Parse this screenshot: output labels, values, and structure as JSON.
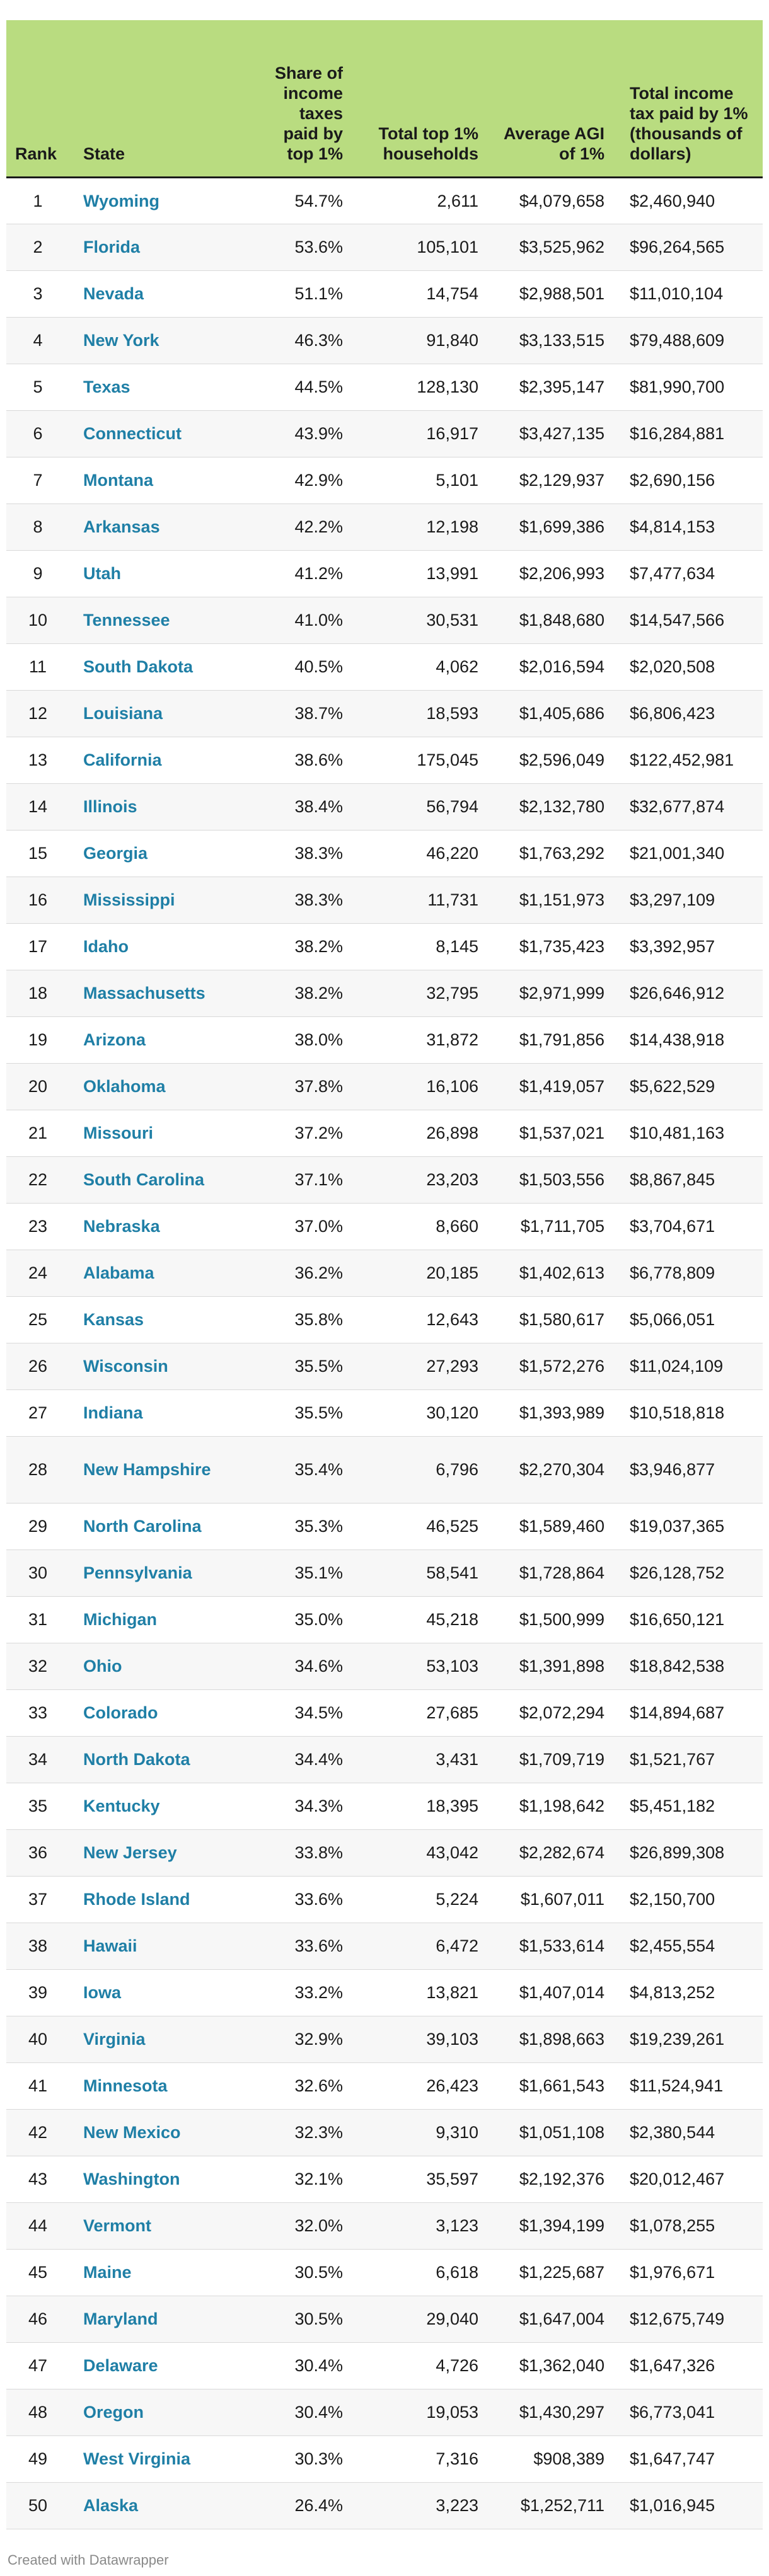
{
  "chart_data": {
    "type": "table",
    "title": "",
    "columns": [
      "Rank",
      "State",
      "Share of income taxes paid by top 1%",
      "Total top 1% households",
      "Average AGI of 1%",
      "Total income tax paid by 1% (thousands of dollars)"
    ],
    "rows": [
      {
        "rank": "1",
        "state": "Wyoming",
        "share": "54.7%",
        "households": "2,611",
        "agi": "$4,079,658",
        "total_tax": "$2,460,940"
      },
      {
        "rank": "2",
        "state": "Florida",
        "share": "53.6%",
        "households": "105,101",
        "agi": "$3,525,962",
        "total_tax": "$96,264,565"
      },
      {
        "rank": "3",
        "state": "Nevada",
        "share": "51.1%",
        "households": "14,754",
        "agi": "$2,988,501",
        "total_tax": "$11,010,104"
      },
      {
        "rank": "4",
        "state": "New York",
        "share": "46.3%",
        "households": "91,840",
        "agi": "$3,133,515",
        "total_tax": "$79,488,609"
      },
      {
        "rank": "5",
        "state": "Texas",
        "share": "44.5%",
        "households": "128,130",
        "agi": "$2,395,147",
        "total_tax": "$81,990,700"
      },
      {
        "rank": "6",
        "state": "Connecticut",
        "share": "43.9%",
        "households": "16,917",
        "agi": "$3,427,135",
        "total_tax": "$16,284,881"
      },
      {
        "rank": "7",
        "state": "Montana",
        "share": "42.9%",
        "households": "5,101",
        "agi": "$2,129,937",
        "total_tax": "$2,690,156"
      },
      {
        "rank": "8",
        "state": "Arkansas",
        "share": "42.2%",
        "households": "12,198",
        "agi": "$1,699,386",
        "total_tax": "$4,814,153"
      },
      {
        "rank": "9",
        "state": "Utah",
        "share": "41.2%",
        "households": "13,991",
        "agi": "$2,206,993",
        "total_tax": "$7,477,634"
      },
      {
        "rank": "10",
        "state": "Tennessee",
        "share": "41.0%",
        "households": "30,531",
        "agi": "$1,848,680",
        "total_tax": "$14,547,566"
      },
      {
        "rank": "11",
        "state": "South Dakota",
        "share": "40.5%",
        "households": "4,062",
        "agi": "$2,016,594",
        "total_tax": "$2,020,508"
      },
      {
        "rank": "12",
        "state": "Louisiana",
        "share": "38.7%",
        "households": "18,593",
        "agi": "$1,405,686",
        "total_tax": "$6,806,423"
      },
      {
        "rank": "13",
        "state": "California",
        "share": "38.6%",
        "households": "175,045",
        "agi": "$2,596,049",
        "total_tax": "$122,452,981"
      },
      {
        "rank": "14",
        "state": "Illinois",
        "share": "38.4%",
        "households": "56,794",
        "agi": "$2,132,780",
        "total_tax": "$32,677,874"
      },
      {
        "rank": "15",
        "state": "Georgia",
        "share": "38.3%",
        "households": "46,220",
        "agi": "$1,763,292",
        "total_tax": "$21,001,340"
      },
      {
        "rank": "16",
        "state": "Mississippi",
        "share": "38.3%",
        "households": "11,731",
        "agi": "$1,151,973",
        "total_tax": "$3,297,109"
      },
      {
        "rank": "17",
        "state": "Idaho",
        "share": "38.2%",
        "households": "8,145",
        "agi": "$1,735,423",
        "total_tax": "$3,392,957"
      },
      {
        "rank": "18",
        "state": "Massachusetts",
        "share": "38.2%",
        "households": "32,795",
        "agi": "$2,971,999",
        "total_tax": "$26,646,912"
      },
      {
        "rank": "19",
        "state": "Arizona",
        "share": "38.0%",
        "households": "31,872",
        "agi": "$1,791,856",
        "total_tax": "$14,438,918"
      },
      {
        "rank": "20",
        "state": "Oklahoma",
        "share": "37.8%",
        "households": "16,106",
        "agi": "$1,419,057",
        "total_tax": "$5,622,529"
      },
      {
        "rank": "21",
        "state": "Missouri",
        "share": "37.2%",
        "households": "26,898",
        "agi": "$1,537,021",
        "total_tax": "$10,481,163"
      },
      {
        "rank": "22",
        "state": "South Carolina",
        "share": "37.1%",
        "households": "23,203",
        "agi": "$1,503,556",
        "total_tax": "$8,867,845"
      },
      {
        "rank": "23",
        "state": "Nebraska",
        "share": "37.0%",
        "households": "8,660",
        "agi": "$1,711,705",
        "total_tax": "$3,704,671"
      },
      {
        "rank": "24",
        "state": "Alabama",
        "share": "36.2%",
        "households": "20,185",
        "agi": "$1,402,613",
        "total_tax": "$6,778,809"
      },
      {
        "rank": "25",
        "state": "Kansas",
        "share": "35.8%",
        "households": "12,643",
        "agi": "$1,580,617",
        "total_tax": "$5,066,051"
      },
      {
        "rank": "26",
        "state": "Wisconsin",
        "share": "35.5%",
        "households": "27,293",
        "agi": "$1,572,276",
        "total_tax": "$11,024,109"
      },
      {
        "rank": "27",
        "state": "Indiana",
        "share": "35.5%",
        "households": "30,120",
        "agi": "$1,393,989",
        "total_tax": "$10,518,818"
      },
      {
        "rank": "28",
        "state": "New Hampshire",
        "share": "35.4%",
        "households": "6,796",
        "agi": "$2,270,304",
        "total_tax": "$3,946,877"
      },
      {
        "rank": "29",
        "state": "North Carolina",
        "share": "35.3%",
        "households": "46,525",
        "agi": "$1,589,460",
        "total_tax": "$19,037,365"
      },
      {
        "rank": "30",
        "state": "Pennsylvania",
        "share": "35.1%",
        "households": "58,541",
        "agi": "$1,728,864",
        "total_tax": "$26,128,752"
      },
      {
        "rank": "31",
        "state": "Michigan",
        "share": "35.0%",
        "households": "45,218",
        "agi": "$1,500,999",
        "total_tax": "$16,650,121"
      },
      {
        "rank": "32",
        "state": "Ohio",
        "share": "34.6%",
        "households": "53,103",
        "agi": "$1,391,898",
        "total_tax": "$18,842,538"
      },
      {
        "rank": "33",
        "state": "Colorado",
        "share": "34.5%",
        "households": "27,685",
        "agi": "$2,072,294",
        "total_tax": "$14,894,687"
      },
      {
        "rank": "34",
        "state": "North Dakota",
        "share": "34.4%",
        "households": "3,431",
        "agi": "$1,709,719",
        "total_tax": "$1,521,767"
      },
      {
        "rank": "35",
        "state": "Kentucky",
        "share": "34.3%",
        "households": "18,395",
        "agi": "$1,198,642",
        "total_tax": "$5,451,182"
      },
      {
        "rank": "36",
        "state": "New Jersey",
        "share": "33.8%",
        "households": "43,042",
        "agi": "$2,282,674",
        "total_tax": "$26,899,308"
      },
      {
        "rank": "37",
        "state": "Rhode Island",
        "share": "33.6%",
        "households": "5,224",
        "agi": "$1,607,011",
        "total_tax": "$2,150,700"
      },
      {
        "rank": "38",
        "state": "Hawaii",
        "share": "33.6%",
        "households": "6,472",
        "agi": "$1,533,614",
        "total_tax": "$2,455,554"
      },
      {
        "rank": "39",
        "state": "Iowa",
        "share": "33.2%",
        "households": "13,821",
        "agi": "$1,407,014",
        "total_tax": "$4,813,252"
      },
      {
        "rank": "40",
        "state": "Virginia",
        "share": "32.9%",
        "households": "39,103",
        "agi": "$1,898,663",
        "total_tax": "$19,239,261"
      },
      {
        "rank": "41",
        "state": "Minnesota",
        "share": "32.6%",
        "households": "26,423",
        "agi": "$1,661,543",
        "total_tax": "$11,524,941"
      },
      {
        "rank": "42",
        "state": "New Mexico",
        "share": "32.3%",
        "households": "9,310",
        "agi": "$1,051,108",
        "total_tax": "$2,380,544"
      },
      {
        "rank": "43",
        "state": "Washington",
        "share": "32.1%",
        "households": "35,597",
        "agi": "$2,192,376",
        "total_tax": "$20,012,467"
      },
      {
        "rank": "44",
        "state": "Vermont",
        "share": "32.0%",
        "households": "3,123",
        "agi": "$1,394,199",
        "total_tax": "$1,078,255"
      },
      {
        "rank": "45",
        "state": "Maine",
        "share": "30.5%",
        "households": "6,618",
        "agi": "$1,225,687",
        "total_tax": "$1,976,671"
      },
      {
        "rank": "46",
        "state": "Maryland",
        "share": "30.5%",
        "households": "29,040",
        "agi": "$1,647,004",
        "total_tax": "$12,675,749"
      },
      {
        "rank": "47",
        "state": "Delaware",
        "share": "30.4%",
        "households": "4,726",
        "agi": "$1,362,040",
        "total_tax": "$1,647,326"
      },
      {
        "rank": "48",
        "state": "Oregon",
        "share": "30.4%",
        "households": "19,053",
        "agi": "$1,430,297",
        "total_tax": "$6,773,041"
      },
      {
        "rank": "49",
        "state": "West Virginia",
        "share": "30.3%",
        "households": "7,316",
        "agi": "$908,389",
        "total_tax": "$1,647,747"
      },
      {
        "rank": "50",
        "state": "Alaska",
        "share": "26.4%",
        "households": "3,223",
        "agi": "$1,252,711",
        "total_tax": "$1,016,945"
      }
    ]
  },
  "colors": {
    "header_background": "#b9dc80",
    "state_link": "#1f7fa6",
    "row_stripe": "#f7f7f7"
  },
  "footer": {
    "credit": "Created with Datawrapper"
  }
}
